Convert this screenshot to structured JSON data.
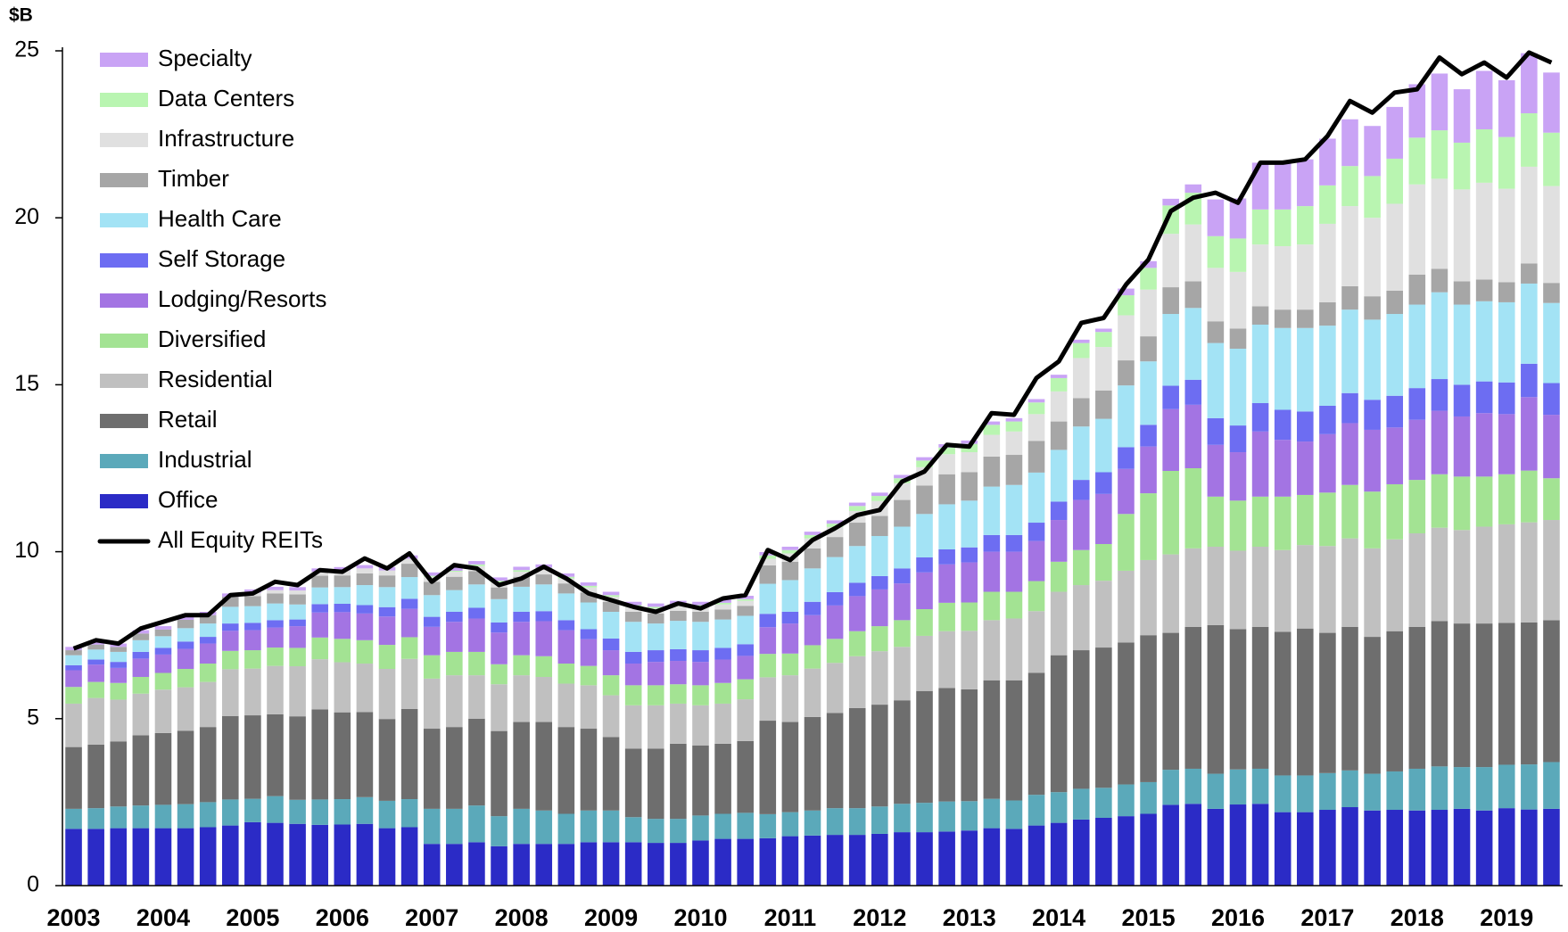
{
  "chart_data": {
    "type": "bar",
    "stacked": true,
    "ylabel": "$B",
    "categories": [
      "2003",
      null,
      null,
      null,
      "2004",
      null,
      null,
      null,
      "2005",
      null,
      null,
      null,
      "2006",
      null,
      null,
      null,
      "2007",
      null,
      null,
      null,
      "2008",
      null,
      null,
      null,
      "2009",
      null,
      null,
      null,
      "2010",
      null,
      null,
      null,
      "2011",
      null,
      null,
      null,
      "2012",
      null,
      null,
      null,
      "2013",
      null,
      null,
      null,
      "2014",
      null,
      null,
      null,
      "2015",
      null,
      null,
      null,
      "2016",
      null,
      null,
      null,
      "2017",
      null,
      null,
      null,
      "2018",
      null,
      null,
      null,
      "2019",
      null,
      null
    ],
    "ylim": [
      0,
      25
    ],
    "yticks": [
      0,
      5,
      10,
      15,
      20,
      25
    ],
    "grid": false,
    "legend": "upper left",
    "series": [
      {
        "name": "Office",
        "color": "#2b2bc6",
        "values": [
          1.7,
          1.7,
          1.72,
          1.72,
          1.72,
          1.72,
          1.75,
          1.8,
          1.9,
          1.88,
          1.85,
          1.82,
          1.83,
          1.85,
          1.72,
          1.75,
          1.25,
          1.25,
          1.3,
          1.18,
          1.25,
          1.25,
          1.25,
          1.3,
          1.3,
          1.3,
          1.28,
          1.28,
          1.35,
          1.4,
          1.4,
          1.42,
          1.48,
          1.5,
          1.52,
          1.52,
          1.55,
          1.6,
          1.6,
          1.62,
          1.65,
          1.72,
          1.7,
          1.8,
          1.88,
          1.98,
          2.03,
          2.08,
          2.15,
          2.42,
          2.45,
          2.3,
          2.43,
          2.45,
          2.2,
          2.2,
          2.27,
          2.35,
          2.25,
          2.27,
          2.25,
          2.27,
          2.3,
          2.25,
          2.32,
          2.28,
          2.3
        ]
      },
      {
        "name": "Industrial",
        "color": "#5ba9ba",
        "values": [
          0.6,
          0.62,
          0.65,
          0.68,
          0.7,
          0.72,
          0.75,
          0.78,
          0.7,
          0.8,
          0.72,
          0.76,
          0.76,
          0.8,
          0.82,
          0.84,
          1.05,
          1.05,
          1.1,
          0.9,
          1.05,
          1.0,
          0.9,
          0.95,
          0.95,
          0.75,
          0.72,
          0.72,
          0.75,
          0.75,
          0.78,
          0.72,
          0.72,
          0.75,
          0.8,
          0.8,
          0.82,
          0.85,
          0.88,
          0.9,
          0.88,
          0.88,
          0.85,
          0.92,
          0.92,
          0.92,
          0.9,
          0.95,
          0.95,
          1.05,
          1.05,
          1.05,
          1.05,
          1.05,
          1.1,
          1.1,
          1.1,
          1.1,
          1.1,
          1.15,
          1.25,
          1.3,
          1.25,
          1.3,
          1.3,
          1.35,
          1.4
        ]
      },
      {
        "name": "Retail",
        "color": "#6e6e6e",
        "values": [
          1.85,
          1.9,
          1.95,
          2.1,
          2.15,
          2.2,
          2.25,
          2.5,
          2.5,
          2.45,
          2.5,
          2.7,
          2.6,
          2.55,
          2.45,
          2.7,
          2.4,
          2.45,
          2.6,
          2.55,
          2.6,
          2.65,
          2.6,
          2.45,
          2.2,
          2.05,
          2.1,
          2.25,
          2.1,
          2.1,
          2.15,
          2.8,
          2.7,
          2.8,
          2.85,
          3.0,
          3.05,
          3.1,
          3.35,
          3.4,
          3.35,
          3.55,
          3.6,
          3.65,
          4.1,
          4.15,
          4.2,
          4.25,
          4.4,
          4.1,
          4.25,
          4.45,
          4.2,
          4.25,
          4.3,
          4.4,
          4.2,
          4.3,
          4.1,
          4.2,
          4.25,
          4.35,
          4.3,
          4.3,
          4.25,
          4.25,
          4.25
        ]
      },
      {
        "name": "Residential",
        "color": "#c0c0c0",
        "values": [
          1.3,
          1.4,
          1.25,
          1.25,
          1.3,
          1.3,
          1.35,
          1.4,
          1.4,
          1.45,
          1.5,
          1.5,
          1.5,
          1.45,
          1.5,
          1.5,
          1.5,
          1.55,
          1.3,
          1.4,
          1.4,
          1.35,
          1.3,
          1.3,
          1.25,
          1.3,
          1.3,
          1.2,
          1.2,
          1.2,
          1.25,
          1.3,
          1.4,
          1.45,
          1.5,
          1.55,
          1.6,
          1.6,
          1.65,
          1.7,
          1.75,
          1.8,
          1.85,
          1.85,
          1.9,
          1.95,
          2.0,
          2.15,
          2.25,
          2.35,
          2.35,
          2.35,
          2.35,
          2.4,
          2.45,
          2.5,
          2.6,
          2.65,
          2.65,
          2.75,
          2.8,
          2.8,
          2.8,
          2.9,
          2.95,
          3.0,
          3.0
        ]
      },
      {
        "name": "Diversified",
        "color": "#a3e393",
        "values": [
          0.5,
          0.48,
          0.5,
          0.5,
          0.5,
          0.55,
          0.55,
          0.55,
          0.55,
          0.55,
          0.55,
          0.65,
          0.7,
          0.7,
          0.72,
          0.65,
          0.7,
          0.7,
          0.7,
          0.6,
          0.6,
          0.62,
          0.6,
          0.58,
          0.6,
          0.6,
          0.6,
          0.58,
          0.6,
          0.62,
          0.6,
          0.7,
          0.65,
          0.7,
          0.72,
          0.75,
          0.75,
          0.8,
          0.8,
          0.85,
          0.85,
          0.85,
          0.8,
          0.9,
          0.9,
          1.05,
          1.1,
          1.7,
          2.0,
          2.5,
          2.4,
          1.5,
          1.5,
          1.5,
          1.6,
          1.5,
          1.6,
          1.6,
          1.7,
          1.65,
          1.6,
          1.6,
          1.6,
          1.5,
          1.5,
          1.55,
          1.25
        ]
      },
      {
        "name": "Lodging/Resorts",
        "color": "#a374e3",
        "values": [
          0.5,
          0.52,
          0.45,
          0.55,
          0.55,
          0.6,
          0.6,
          0.6,
          0.6,
          0.6,
          0.65,
          0.75,
          0.8,
          0.8,
          0.85,
          0.85,
          0.85,
          0.9,
          1.0,
          0.95,
          1.0,
          1.05,
          1.0,
          0.8,
          0.75,
          0.65,
          0.7,
          0.7,
          0.7,
          0.7,
          0.7,
          0.8,
          0.9,
          0.9,
          1.0,
          1.05,
          1.1,
          1.1,
          1.1,
          1.15,
          1.2,
          1.2,
          1.2,
          1.2,
          1.25,
          1.5,
          1.5,
          1.35,
          1.4,
          1.85,
          1.9,
          1.55,
          1.45,
          1.95,
          1.7,
          1.6,
          1.75,
          1.85,
          1.85,
          1.7,
          1.8,
          1.9,
          1.8,
          1.9,
          1.8,
          2.2,
          1.9
        ]
      },
      {
        "name": "Self Storage",
        "color": "#6d6df2",
        "values": [
          0.15,
          0.15,
          0.18,
          0.2,
          0.2,
          0.22,
          0.2,
          0.22,
          0.22,
          0.22,
          0.2,
          0.25,
          0.25,
          0.25,
          0.28,
          0.3,
          0.3,
          0.3,
          0.32,
          0.3,
          0.3,
          0.3,
          0.3,
          0.3,
          0.35,
          0.35,
          0.35,
          0.35,
          0.35,
          0.35,
          0.35,
          0.4,
          0.35,
          0.4,
          0.4,
          0.4,
          0.4,
          0.45,
          0.45,
          0.45,
          0.45,
          0.5,
          0.5,
          0.55,
          0.55,
          0.6,
          0.65,
          0.65,
          0.65,
          0.7,
          0.75,
          0.8,
          0.8,
          0.85,
          0.9,
          0.9,
          0.85,
          0.9,
          0.9,
          0.95,
          0.95,
          0.95,
          0.95,
          0.95,
          0.95,
          1.0,
          0.95
        ]
      },
      {
        "name": "Health Care",
        "color": "#a3e3f5",
        "values": [
          0.3,
          0.3,
          0.3,
          0.35,
          0.35,
          0.4,
          0.4,
          0.5,
          0.5,
          0.5,
          0.45,
          0.5,
          0.5,
          0.6,
          0.6,
          0.65,
          0.65,
          0.65,
          0.7,
          0.7,
          0.75,
          0.8,
          0.8,
          0.8,
          0.8,
          0.9,
          0.8,
          0.85,
          0.85,
          0.85,
          0.85,
          0.9,
          0.95,
          1.0,
          1.05,
          1.1,
          1.2,
          1.25,
          1.3,
          1.35,
          1.4,
          1.45,
          1.5,
          1.5,
          1.55,
          1.6,
          1.6,
          1.85,
          1.9,
          2.15,
          2.15,
          2.25,
          2.3,
          2.35,
          2.45,
          2.5,
          2.4,
          2.5,
          2.4,
          2.45,
          2.5,
          2.6,
          2.4,
          2.4,
          2.4,
          2.4,
          2.4
        ]
      },
      {
        "name": "Timber",
        "color": "#a6a6a6",
        "values": [
          0.15,
          0.15,
          0.15,
          0.2,
          0.2,
          0.25,
          0.25,
          0.3,
          0.3,
          0.3,
          0.3,
          0.35,
          0.35,
          0.35,
          0.35,
          0.4,
          0.4,
          0.4,
          0.4,
          0.35,
          0.3,
          0.3,
          0.3,
          0.3,
          0.3,
          0.3,
          0.3,
          0.3,
          0.3,
          0.3,
          0.3,
          0.55,
          0.55,
          0.6,
          0.6,
          0.7,
          0.6,
          0.8,
          0.85,
          0.9,
          0.85,
          0.9,
          0.9,
          0.95,
          0.85,
          0.85,
          0.85,
          0.75,
          0.75,
          0.8,
          0.8,
          0.65,
          0.6,
          0.55,
          0.55,
          0.55,
          0.7,
          0.7,
          0.7,
          0.7,
          0.9,
          0.7,
          0.7,
          0.65,
          0.6,
          0.6,
          0.6
        ]
      },
      {
        "name": "Infrastructure",
        "color": "#e0e0e0",
        "values": [
          0,
          0,
          0,
          0,
          0,
          0,
          0,
          0,
          0.1,
          0.1,
          0.12,
          0.12,
          0.15,
          0.15,
          0.15,
          0.15,
          0.15,
          0.15,
          0.15,
          0.15,
          0.15,
          0.15,
          0.15,
          0.15,
          0.15,
          0.15,
          0.15,
          0.15,
          0.15,
          0.15,
          0.15,
          0.2,
          0.25,
          0.3,
          0.3,
          0.35,
          0.45,
          0.5,
          0.55,
          0.6,
          0.6,
          0.65,
          0.7,
          0.8,
          0.9,
          1.2,
          1.3,
          1.35,
          1.4,
          1.6,
          1.7,
          1.6,
          1.7,
          1.85,
          1.9,
          1.95,
          2.35,
          2.4,
          2.35,
          2.6,
          2.7,
          2.7,
          2.75,
          2.9,
          2.8,
          2.9,
          2.9
        ]
      },
      {
        "name": "Data Centers",
        "color": "#b9f5b1",
        "values": [
          0,
          0,
          0,
          0,
          0,
          0,
          0,
          0,
          0,
          0,
          0,
          0,
          0,
          0,
          0,
          0,
          0.03,
          0.03,
          0.05,
          0.05,
          0.05,
          0.05,
          0.05,
          0.05,
          0.05,
          0.05,
          0.05,
          0.05,
          0.05,
          0.05,
          0.05,
          0.1,
          0.1,
          0.1,
          0.1,
          0.15,
          0.15,
          0.15,
          0.2,
          0.2,
          0.25,
          0.3,
          0.3,
          0.35,
          0.4,
          0.45,
          0.45,
          0.6,
          0.65,
          0.85,
          0.95,
          0.95,
          1.0,
          1.05,
          1.1,
          1.15,
          1.15,
          1.2,
          1.25,
          1.35,
          1.4,
          1.45,
          1.4,
          1.6,
          1.55,
          1.6,
          1.6
        ]
      },
      {
        "name": "Specialty",
        "color": "#c9a3f5",
        "values": [
          0.1,
          0.1,
          0.1,
          0.1,
          0.1,
          0.1,
          0.1,
          0.1,
          0.1,
          0.1,
          0.1,
          0.1,
          0.1,
          0.1,
          0.1,
          0.1,
          0.1,
          0.1,
          0.1,
          0.1,
          0.1,
          0.1,
          0.1,
          0.1,
          0.1,
          0.1,
          0.1,
          0.1,
          0.1,
          0.1,
          0.1,
          0.1,
          0.1,
          0.1,
          0.1,
          0.1,
          0.1,
          0.1,
          0.1,
          0.1,
          0.1,
          0.1,
          0.1,
          0.1,
          0.1,
          0.1,
          0.1,
          0.2,
          0.2,
          0.2,
          0.25,
          1.1,
          1.2,
          1.4,
          1.4,
          1.4,
          1.4,
          1.4,
          1.5,
          1.55,
          1.6,
          1.7,
          1.6,
          1.75,
          1.7,
          1.8,
          1.8
        ]
      }
    ],
    "line": {
      "name": "All Equity REITs",
      "color": "#000000",
      "values": [
        7.1,
        7.35,
        7.25,
        7.7,
        7.9,
        8.1,
        8.1,
        8.7,
        8.75,
        9.1,
        9.0,
        9.45,
        9.4,
        9.8,
        9.5,
        9.95,
        9.1,
        9.6,
        9.5,
        9.0,
        9.2,
        9.55,
        9.2,
        8.75,
        8.55,
        8.35,
        8.2,
        8.45,
        8.3,
        8.6,
        8.7,
        10.05,
        9.75,
        10.35,
        10.7,
        11.1,
        11.25,
        12.1,
        12.4,
        13.2,
        13.15,
        14.15,
        14.1,
        15.2,
        15.7,
        16.85,
        17.0,
        18.0,
        18.75,
        20.2,
        20.6,
        20.75,
        20.45,
        21.65,
        21.65,
        21.75,
        22.45,
        23.5,
        23.15,
        23.75,
        23.85,
        24.8,
        24.3,
        24.65,
        24.2,
        24.95,
        24.65
      ]
    }
  }
}
